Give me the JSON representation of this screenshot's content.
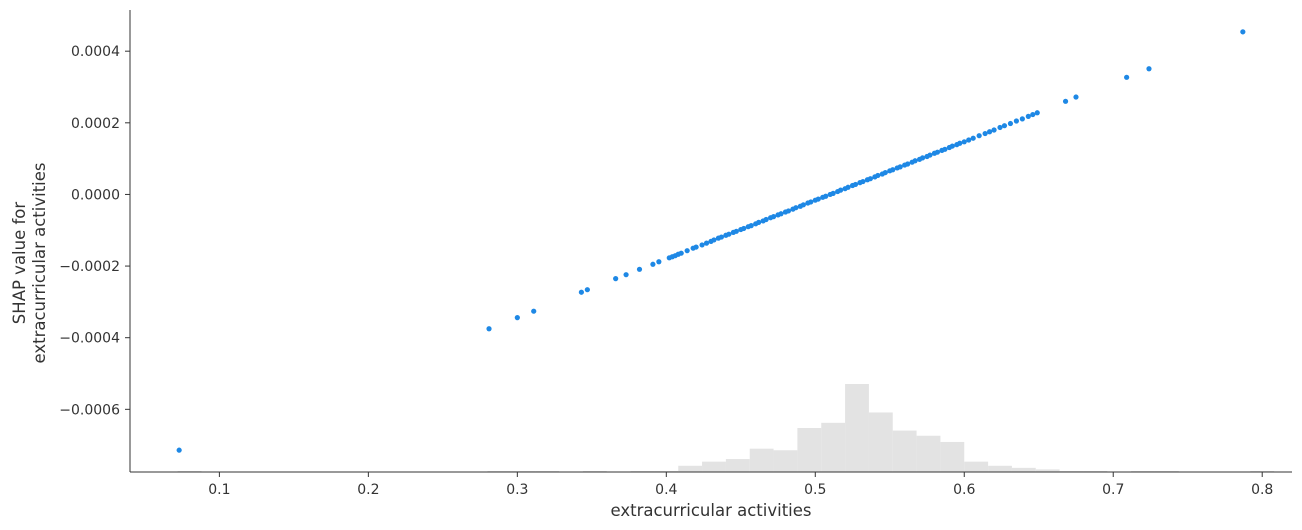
{
  "chart_data": {
    "type": "scatter",
    "title": "",
    "xlabel": "extracurricular activities",
    "ylabel": "SHAP value for\nextracurricular activities",
    "xlim": [
      0.04,
      0.82
    ],
    "ylim": [
      -0.000775,
      0.000515
    ],
    "x_ticks": [
      0.1,
      0.2,
      0.3,
      0.4,
      0.5,
      0.6,
      0.7,
      0.8
    ],
    "x_tick_labels": [
      "0.1",
      "0.2",
      "0.3",
      "0.4",
      "0.5",
      "0.6",
      "0.7",
      "0.8"
    ],
    "y_ticks": [
      0.0004,
      0.0002,
      0.0,
      -0.0002,
      -0.0004,
      -0.0006
    ],
    "y_tick_labels": [
      "0.0004",
      "0.0002",
      "0.0000",
      "−0.0002",
      "−0.0004",
      "−0.0006"
    ],
    "grid": false,
    "point_color": "#1e88e5",
    "histogram_color": "#e3e3e3",
    "points": {
      "x": [
        0.073,
        0.281,
        0.3,
        0.311,
        0.343,
        0.347,
        0.366,
        0.373,
        0.382,
        0.391,
        0.395,
        0.402,
        0.404,
        0.406,
        0.408,
        0.41,
        0.414,
        0.418,
        0.42,
        0.424,
        0.427,
        0.43,
        0.432,
        0.435,
        0.437,
        0.44,
        0.442,
        0.445,
        0.447,
        0.45,
        0.452,
        0.455,
        0.457,
        0.46,
        0.462,
        0.465,
        0.467,
        0.47,
        0.472,
        0.475,
        0.477,
        0.48,
        0.482,
        0.485,
        0.487,
        0.49,
        0.492,
        0.495,
        0.497,
        0.5,
        0.502,
        0.505,
        0.507,
        0.51,
        0.512,
        0.515,
        0.517,
        0.52,
        0.522,
        0.525,
        0.527,
        0.53,
        0.532,
        0.535,
        0.537,
        0.54,
        0.542,
        0.545,
        0.547,
        0.55,
        0.552,
        0.555,
        0.557,
        0.56,
        0.562,
        0.565,
        0.567,
        0.57,
        0.572,
        0.575,
        0.577,
        0.58,
        0.582,
        0.585,
        0.587,
        0.59,
        0.592,
        0.595,
        0.597,
        0.6,
        0.603,
        0.606,
        0.61,
        0.614,
        0.617,
        0.62,
        0.624,
        0.627,
        0.631,
        0.635,
        0.639,
        0.643,
        0.646,
        0.649,
        0.668,
        0.675,
        0.709,
        0.724,
        0.787
      ],
      "y": [
        -0.000714,
        -0.000375,
        -0.000344,
        -0.000326,
        -0.000273,
        -0.000266,
        -0.000235,
        -0.000224,
        -0.000209,
        -0.000195,
        -0.000188,
        -0.000177,
        -0.000174,
        -0.000171,
        -0.000167,
        -0.000164,
        -0.000157,
        -0.00015,
        -0.000147,
        -0.000141,
        -0.000136,
        -0.000131,
        -0.000127,
        -0.000122,
        -0.000119,
        -0.000114,
        -0.000111,
        -0.000106,
        -0.000103,
        -9.8e-05,
        -9.5e-05,
        -9e-05,
        -8.7e-05,
        -8.2e-05,
        -7.8e-05,
        -7.4e-05,
        -7e-05,
        -6.5e-05,
        -6.2e-05,
        -5.7e-05,
        -5.4e-05,
        -4.9e-05,
        -4.6e-05,
        -4.1e-05,
        -3.7e-05,
        -3.3e-05,
        -2.9e-05,
        -2.4e-05,
        -2.1e-05,
        -1.6e-05,
        -1.3e-05,
        -8e-06,
        -5e-06,
        0.0,
        3e-06,
        8e-06,
        1.2e-05,
        1.6e-05,
        2e-05,
        2.5e-05,
        2.8e-05,
        3.3e-05,
        3.6e-05,
        4.1e-05,
        4.4e-05,
        4.9e-05,
        5.3e-05,
        5.7e-05,
        6.1e-05,
        6.6e-05,
        6.9e-05,
        7.4e-05,
        7.7e-05,
        8.2e-05,
        8.5e-05,
        9e-05,
        9.4e-05,
        9.8e-05,
        0.000102,
        0.000106,
        0.00011,
        0.000115,
        0.000118,
        0.000123,
        0.000126,
        0.000131,
        0.000135,
        0.000139,
        0.000143,
        0.000147,
        0.000152,
        0.000157,
        0.000164,
        0.00017,
        0.000175,
        0.00018,
        0.000187,
        0.000192,
        0.000198,
        0.000205,
        0.000211,
        0.000218,
        0.000223,
        0.000228,
        0.00026,
        0.000272,
        0.000327,
        0.000351,
        0.000454
      ]
    },
    "histogram": {
      "bin_edges": [
        0.04,
        0.056,
        0.072,
        0.088,
        0.104,
        0.12,
        0.136,
        0.152,
        0.168,
        0.184,
        0.2,
        0.216,
        0.232,
        0.248,
        0.264,
        0.28,
        0.296,
        0.312,
        0.328,
        0.344,
        0.36,
        0.376,
        0.392,
        0.408,
        0.424,
        0.44,
        0.456,
        0.472,
        0.488,
        0.504,
        0.52,
        0.536,
        0.552,
        0.568,
        0.584,
        0.6,
        0.616,
        0.632,
        0.648,
        0.664,
        0.68,
        0.696,
        0.712,
        0.728,
        0.744,
        0.76,
        0.776,
        0.792,
        0.808
      ],
      "counts": [
        0,
        0,
        1,
        0,
        0,
        0,
        0,
        0,
        0,
        0,
        0,
        0,
        0,
        0,
        0,
        1,
        1,
        1,
        0,
        1,
        0,
        1,
        1,
        12,
        20,
        25,
        45,
        42,
        85,
        95,
        170,
        115,
        80,
        70,
        58,
        20,
        12,
        8,
        5,
        1,
        1,
        0,
        1,
        1,
        0,
        0,
        0,
        1
      ]
    }
  }
}
